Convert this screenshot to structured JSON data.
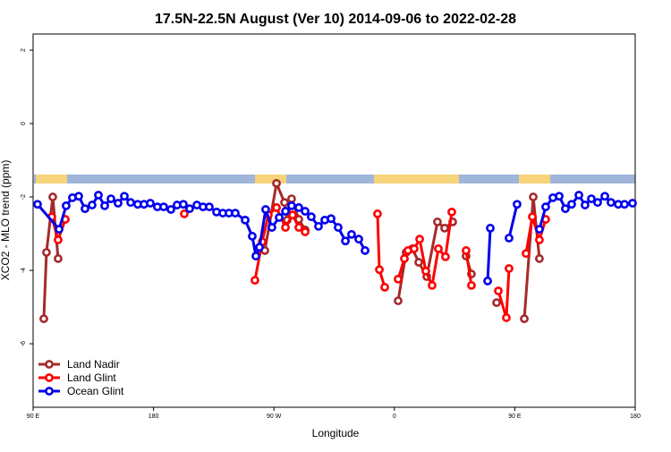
{
  "chart_data": {
    "type": "line",
    "title": "17.5N-22.5N August (Ver 10)   2014-09-06 to 2022-02-28",
    "x_label": "Longitude",
    "y_label": "XCO2 - MLO trend (ppm)",
    "xlim": [
      90,
      540
    ],
    "xticks": [
      {
        "value": 90,
        "label": "90 E"
      },
      180,
      {
        "value": 270,
        "label": "90 W"
      },
      {
        "value": 360,
        "label": "0"
      },
      {
        "value": 450,
        "label": "90 E"
      },
      {
        "value": 540,
        "label": "180"
      }
    ],
    "ylim": [
      -7.73,
      2.44
    ],
    "yticks": [
      -6,
      -4,
      -2,
      0,
      2
    ],
    "legend": "bottom-left",
    "series": [
      {
        "name": "Land Nadir",
        "color": "#a52a2a",
        "x": [
          98.0,
          100.0,
          104.7,
          108.7,
          null,
          263.2,
          271.9,
          277.9,
          279.9,
          283.2,
          288.6,
          293.3,
          null,
          362.8,
          368.8,
          373.5,
          378.2,
          384.2,
          392.2,
          397.6,
          403.6,
          null,
          413.6,
          417.6,
          null,
          436.4,
          null,
          457.1,
          463.8,
          468.4
        ],
        "values": [
          -5.32,
          -3.51,
          -2.0,
          -3.68,
          null,
          -3.46,
          -1.63,
          -2.15,
          -2.63,
          -2.05,
          -2.61,
          -2.9,
          null,
          -4.83,
          -3.51,
          -3.41,
          -3.78,
          -4.17,
          -2.68,
          -2.85,
          -2.68,
          null,
          -3.61,
          -4.1,
          null,
          -4.88,
          null,
          -5.32,
          -2.0,
          -3.68
        ]
      },
      {
        "name": "Land Glint",
        "color": "#ff0000",
        "x": [
          104.0,
          108.7,
          114.1,
          null,
          203.0,
          null,
          255.8,
          261.2,
          265.8,
          271.9,
          278.6,
          283.9,
          288.6,
          293.3,
          null,
          347.4,
          348.8,
          352.8,
          null,
          362.8,
          367.5,
          370.2,
          374.8,
          378.9,
          383.5,
          388.2,
          392.9,
          398.2,
          402.9,
          null,
          413.6,
          417.6,
          null,
          437.7,
          443.7,
          445.7,
          null,
          458.4,
          463.1,
          468.4,
          473.1
        ],
        "values": [
          -2.54,
          -3.17,
          -2.61,
          null,
          -2.46,
          null,
          -4.27,
          -3.22,
          -2.49,
          -2.29,
          -2.83,
          -2.49,
          -2.83,
          -2.95,
          null,
          -2.46,
          -3.98,
          -4.46,
          null,
          -4.24,
          -3.68,
          -3.46,
          -3.41,
          -3.15,
          -4.02,
          -4.41,
          -3.41,
          -3.63,
          -2.41,
          null,
          -3.46,
          -4.41,
          null,
          -4.56,
          -5.29,
          -3.95,
          null,
          -3.54,
          -2.54,
          -3.17,
          -2.61
        ]
      },
      {
        "name": "Ocean Glint",
        "color": "#0000ee",
        "x": [
          93.3,
          109.4,
          114.7,
          119.4,
          124.1,
          128.8,
          134.1,
          138.8,
          143.5,
          148.2,
          153.5,
          158.2,
          162.9,
          168.2,
          172.9,
          177.6,
          182.9,
          187.6,
          193.0,
          197.6,
          202.3,
          207.0,
          212.4,
          217.0,
          221.7,
          227.1,
          231.8,
          236.4,
          241.1,
          248.5,
          253.8,
          256.5,
          259.2,
          263.8,
          268.5,
          273.9,
          278.6,
          283.2,
          288.6,
          293.3,
          297.9,
          303.3,
          308.0,
          312.7,
          318.0,
          323.4,
          328.0,
          333.4,
          338.1,
          null,
          429.7,
          431.7,
          null,
          445.7,
          451.7,
          null,
          468.4,
          473.1,
          478.5,
          483.2,
          487.8,
          492.5,
          497.9,
          502.5,
          507.2,
          511.9,
          517.3,
          521.9,
          527.3,
          532.0,
          538.0
        ],
        "values": [
          -2.2,
          -2.88,
          -2.24,
          -2.02,
          -1.98,
          -2.32,
          -2.22,
          -1.95,
          -2.24,
          -2.05,
          -2.17,
          -1.98,
          -2.15,
          -2.2,
          -2.2,
          -2.17,
          -2.27,
          -2.27,
          -2.34,
          -2.22,
          -2.2,
          -2.32,
          -2.22,
          -2.27,
          -2.27,
          -2.41,
          -2.44,
          -2.44,
          -2.44,
          -2.63,
          -3.07,
          -3.61,
          -3.37,
          -2.34,
          -2.83,
          -2.56,
          -2.39,
          -2.24,
          -2.29,
          -2.39,
          -2.54,
          -2.8,
          -2.63,
          -2.59,
          -2.83,
          -3.2,
          -3.02,
          -3.15,
          -3.46,
          null,
          -4.29,
          -2.85,
          null,
          -3.12,
          -2.2,
          null,
          -2.88,
          -2.27,
          -2.02,
          -1.98,
          -2.32,
          -2.2,
          -1.95,
          -2.22,
          -2.05,
          -2.15,
          -1.98,
          -2.15,
          -2.2,
          -2.2,
          -2.17
        ]
      }
    ]
  }
}
